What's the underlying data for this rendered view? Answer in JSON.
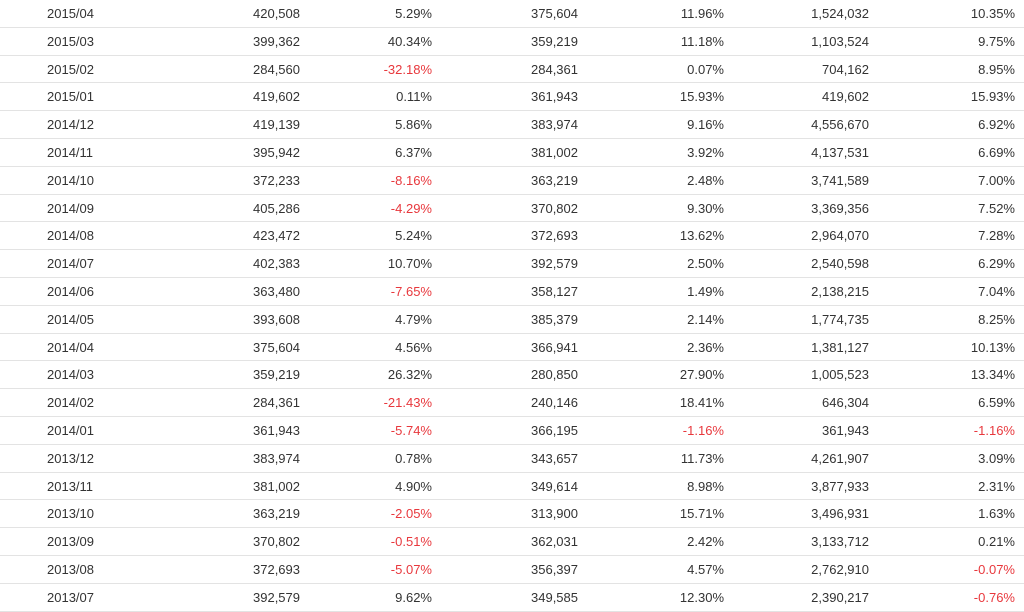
{
  "table": {
    "rows": [
      {
        "date": "2015/04",
        "v1": "420,508",
        "p1": "5.29%",
        "v2": "375,604",
        "p2": "11.96%",
        "v3": "1,524,032",
        "p3": "10.35%"
      },
      {
        "date": "2015/03",
        "v1": "399,362",
        "p1": "40.34%",
        "v2": "359,219",
        "p2": "11.18%",
        "v3": "1,103,524",
        "p3": "9.75%"
      },
      {
        "date": "2015/02",
        "v1": "284,560",
        "p1": "-32.18%",
        "v2": "284,361",
        "p2": "0.07%",
        "v3": "704,162",
        "p3": "8.95%"
      },
      {
        "date": "2015/01",
        "v1": "419,602",
        "p1": "0.11%",
        "v2": "361,943",
        "p2": "15.93%",
        "v3": "419,602",
        "p3": "15.93%"
      },
      {
        "date": "2014/12",
        "v1": "419,139",
        "p1": "5.86%",
        "v2": "383,974",
        "p2": "9.16%",
        "v3": "4,556,670",
        "p3": "6.92%"
      },
      {
        "date": "2014/11",
        "v1": "395,942",
        "p1": "6.37%",
        "v2": "381,002",
        "p2": "3.92%",
        "v3": "4,137,531",
        "p3": "6.69%"
      },
      {
        "date": "2014/10",
        "v1": "372,233",
        "p1": "-8.16%",
        "v2": "363,219",
        "p2": "2.48%",
        "v3": "3,741,589",
        "p3": "7.00%"
      },
      {
        "date": "2014/09",
        "v1": "405,286",
        "p1": "-4.29%",
        "v2": "370,802",
        "p2": "9.30%",
        "v3": "3,369,356",
        "p3": "7.52%"
      },
      {
        "date": "2014/08",
        "v1": "423,472",
        "p1": "5.24%",
        "v2": "372,693",
        "p2": "13.62%",
        "v3": "2,964,070",
        "p3": "7.28%"
      },
      {
        "date": "2014/07",
        "v1": "402,383",
        "p1": "10.70%",
        "v2": "392,579",
        "p2": "2.50%",
        "v3": "2,540,598",
        "p3": "6.29%"
      },
      {
        "date": "2014/06",
        "v1": "363,480",
        "p1": "-7.65%",
        "v2": "358,127",
        "p2": "1.49%",
        "v3": "2,138,215",
        "p3": "7.04%"
      },
      {
        "date": "2014/05",
        "v1": "393,608",
        "p1": "4.79%",
        "v2": "385,379",
        "p2": "2.14%",
        "v3": "1,774,735",
        "p3": "8.25%"
      },
      {
        "date": "2014/04",
        "v1": "375,604",
        "p1": "4.56%",
        "v2": "366,941",
        "p2": "2.36%",
        "v3": "1,381,127",
        "p3": "10.13%"
      },
      {
        "date": "2014/03",
        "v1": "359,219",
        "p1": "26.32%",
        "v2": "280,850",
        "p2": "27.90%",
        "v3": "1,005,523",
        "p3": "13.34%"
      },
      {
        "date": "2014/02",
        "v1": "284,361",
        "p1": "-21.43%",
        "v2": "240,146",
        "p2": "18.41%",
        "v3": "646,304",
        "p3": "6.59%"
      },
      {
        "date": "2014/01",
        "v1": "361,943",
        "p1": "-5.74%",
        "v2": "366,195",
        "p2": "-1.16%",
        "v3": "361,943",
        "p3": "-1.16%"
      },
      {
        "date": "2013/12",
        "v1": "383,974",
        "p1": "0.78%",
        "v2": "343,657",
        "p2": "11.73%",
        "v3": "4,261,907",
        "p3": "3.09%"
      },
      {
        "date": "2013/11",
        "v1": "381,002",
        "p1": "4.90%",
        "v2": "349,614",
        "p2": "8.98%",
        "v3": "3,877,933",
        "p3": "2.31%"
      },
      {
        "date": "2013/10",
        "v1": "363,219",
        "p1": "-2.05%",
        "v2": "313,900",
        "p2": "15.71%",
        "v3": "3,496,931",
        "p3": "1.63%"
      },
      {
        "date": "2013/09",
        "v1": "370,802",
        "p1": "-0.51%",
        "v2": "362,031",
        "p2": "2.42%",
        "v3": "3,133,712",
        "p3": "0.21%"
      },
      {
        "date": "2013/08",
        "v1": "372,693",
        "p1": "-5.07%",
        "v2": "356,397",
        "p2": "4.57%",
        "v3": "2,762,910",
        "p3": "-0.07%"
      },
      {
        "date": "2013/07",
        "v1": "392,579",
        "p1": "9.62%",
        "v2": "349,585",
        "p2": "12.30%",
        "v3": "2,390,217",
        "p3": "-0.76%"
      }
    ]
  },
  "colors": {
    "negative": "#e8383d",
    "text": "#333333",
    "divider": "#e3e3e3"
  }
}
